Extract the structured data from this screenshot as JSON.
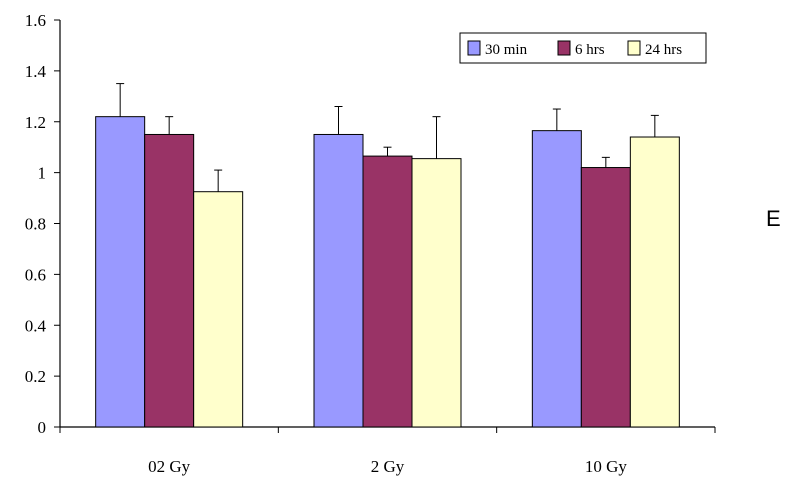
{
  "panel_label": "E",
  "chart_data": {
    "type": "bar",
    "categories": [
      "02 Gy",
      "2 Gy",
      "10 Gy"
    ],
    "series": [
      {
        "name": "30 min",
        "color": "#9999ff",
        "values": [
          1.22,
          1.15,
          1.165
        ],
        "errors": [
          0.13,
          0.11,
          0.085
        ]
      },
      {
        "name": "6 hrs",
        "color": "#993366",
        "values": [
          1.15,
          1.065,
          1.02
        ],
        "errors": [
          0.07,
          0.035,
          0.04
        ]
      },
      {
        "name": "24 hrs",
        "color": "#ffffcc",
        "values": [
          0.925,
          1.055,
          1.14
        ],
        "errors": [
          0.085,
          0.165,
          0.085
        ]
      }
    ],
    "ylim": [
      0,
      1.6
    ],
    "yticks": [
      "0",
      "0.2",
      "0.4",
      "0.6",
      "0.8",
      "1",
      "1.2",
      "1.4",
      "1.6"
    ],
    "ytick_values": [
      0,
      0.2,
      0.4,
      0.6,
      0.8,
      1,
      1.2,
      1.4,
      1.6
    ],
    "xlabel": "",
    "ylabel": "",
    "title": "",
    "grid": false,
    "legend": "top-right"
  }
}
